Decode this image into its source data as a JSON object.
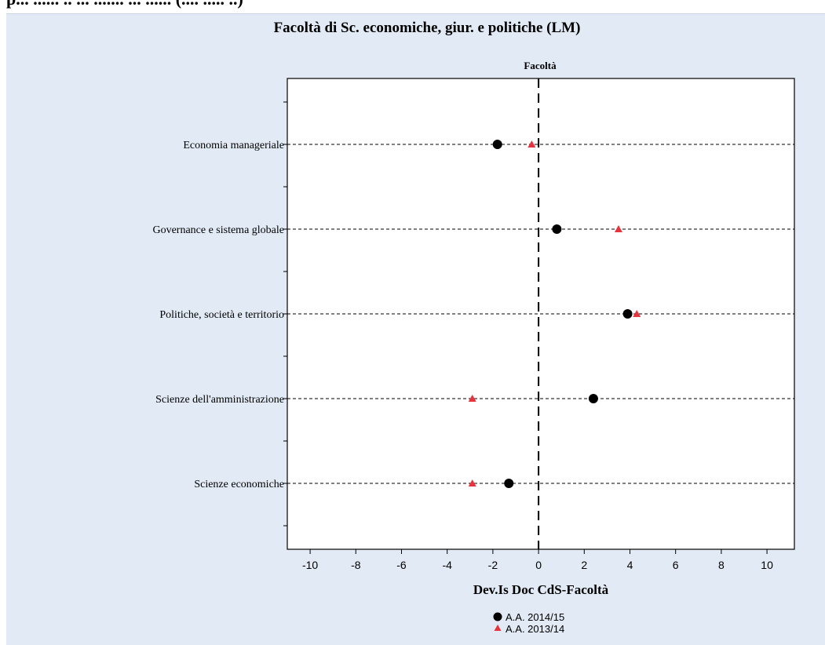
{
  "page_header": "p... ...... .. ... ....... ... ...... (.... ..... ..)",
  "chart_data": {
    "type": "scatter",
    "title": "Facoltà di Sc. economiche, giur. e politiche (LM)",
    "panel_label": "Facoltà",
    "xlabel": "Dev.Is Doc CdS-Facoltà",
    "ylabel": "",
    "xlim": [
      -11,
      11.2
    ],
    "xticks": [
      -10,
      -8,
      -6,
      -4,
      -2,
      0,
      2,
      4,
      6,
      8,
      10
    ],
    "reference_line_x": 0,
    "grid": false,
    "categories": [
      "Economia manageriale",
      "Governance e sistema globale",
      "Politiche, società e territorio",
      "Scienze dell'amministrazione",
      "Scienze economiche"
    ],
    "series": [
      {
        "name": "A.A. 2014/15",
        "marker": "circle",
        "color": "#000000",
        "values": [
          -1.8,
          0.8,
          3.9,
          2.4,
          -1.3
        ]
      },
      {
        "name": "A.A. 2013/14",
        "marker": "triangle",
        "color": "#e8323c",
        "values": [
          -0.3,
          3.5,
          4.3,
          -2.9,
          -2.9
        ]
      }
    ],
    "legend_position": "bottom-center"
  }
}
